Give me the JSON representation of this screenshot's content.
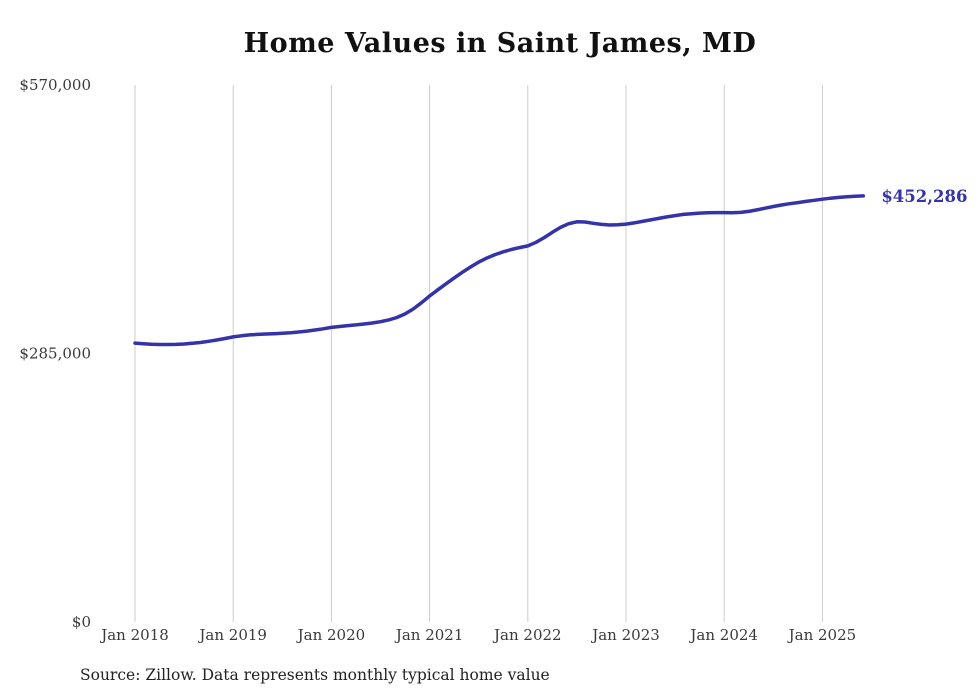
{
  "title": "Home Values in Saint James, MD",
  "source_note": "Source: Zillow. Data represents monthly typical home value",
  "end_label": "$452,286",
  "colors": {
    "line": "#3533a8",
    "end_label": "#3533a8",
    "gridline": "#cccccc",
    "axis_text": "#3a3a3a",
    "title_text": "#111111",
    "background": "#ffffff"
  },
  "chart_data": {
    "type": "line",
    "title": "Home Values in Saint James, MD",
    "xlabel": "",
    "ylabel": "",
    "x_start": "2018-01",
    "x_end": "2025-06",
    "x_tick_labels": [
      "Jan 2018",
      "Jan 2019",
      "Jan 2020",
      "Jan 2021",
      "Jan 2022",
      "Jan 2023",
      "Jan 2024",
      "Jan 2025"
    ],
    "y_ticks": [
      0,
      285000,
      570000
    ],
    "y_tick_labels": [
      "$0",
      "$285,000",
      "$570,000"
    ],
    "ylim": [
      0,
      570000
    ],
    "grid": "vertical-only",
    "legend": false,
    "end_value": 452286,
    "series": [
      {
        "name": "Typical home value",
        "values": [
          296000,
          295400,
          294900,
          294600,
          294500,
          294700,
          295100,
          295800,
          296700,
          297900,
          299300,
          300900,
          302600,
          303800,
          304700,
          305300,
          305700,
          306000,
          306400,
          307000,
          307800,
          308800,
          309900,
          311200,
          312700,
          313700,
          314600,
          315400,
          316300,
          317400,
          318800,
          320700,
          323200,
          327000,
          332200,
          338800,
          346000,
          352600,
          359000,
          365200,
          371200,
          376800,
          382000,
          386400,
          390000,
          393000,
          395400,
          397400,
          399200,
          403000,
          408000,
          413600,
          418800,
          422800,
          424800,
          424600,
          423200,
          422000,
          421400,
          421600,
          422400,
          423600,
          425200,
          426800,
          428400,
          430000,
          431400,
          432600,
          433400,
          434000,
          434400,
          434600,
          434600,
          434400,
          434800,
          435800,
          437400,
          439200,
          441000,
          442600,
          444000,
          445200,
          446400,
          447600,
          448800,
          449800,
          450700,
          451400,
          451900,
          452286
        ]
      }
    ]
  }
}
